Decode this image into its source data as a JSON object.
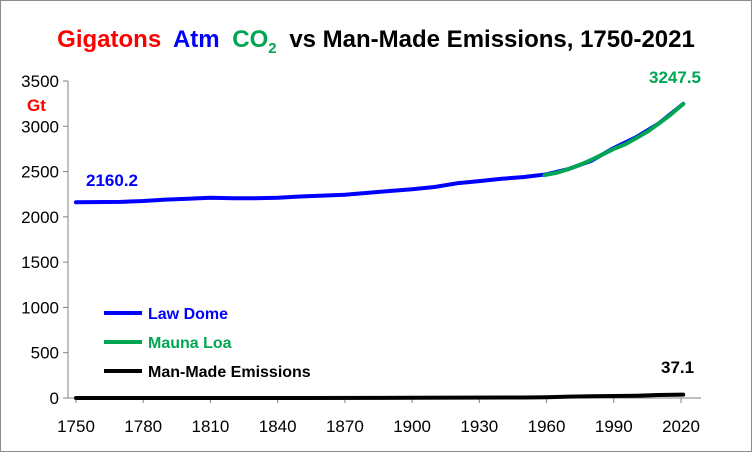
{
  "chart_data": {
    "type": "line",
    "title": {
      "part1": "Gigatons",
      "part2": "Atm",
      "part3": "CO",
      "part3_sub": "2",
      "part4": "vs Man-Made Emissions, 1750-2021",
      "colors": [
        "#ff0000",
        "#0000ff",
        "#00a651",
        "#000000"
      ]
    },
    "ylabel": "Gt",
    "xlim": [
      1750,
      2025
    ],
    "ylim": [
      0,
      3500
    ],
    "x_ticks": [
      "1750",
      "1780",
      "1810",
      "1840",
      "1870",
      "1900",
      "1930",
      "1960",
      "1990",
      "2020"
    ],
    "y_ticks": [
      "0",
      "500",
      "1000",
      "1500",
      "2000",
      "2500",
      "3000",
      "3500"
    ],
    "grid": false,
    "legend_position": "bottom-left",
    "annotations": [
      {
        "text": "2160.2",
        "color": "#0000ff"
      },
      {
        "text": "3247.5",
        "color": "#00a651"
      },
      {
        "text": "37.1",
        "color": "#000000"
      }
    ],
    "series": [
      {
        "name": "Law Dome",
        "color": "#0000ff",
        "x": [
          1750,
          1770,
          1780,
          1790,
          1800,
          1810,
          1820,
          1830,
          1840,
          1850,
          1860,
          1870,
          1880,
          1890,
          1900,
          1910,
          1920,
          1930,
          1940,
          1950,
          1960,
          1970,
          1980,
          1990,
          2000,
          2010,
          2021
        ],
        "y": [
          2160.2,
          2165,
          2175,
          2190,
          2200,
          2210,
          2205,
          2205,
          2210,
          2225,
          2235,
          2245,
          2265,
          2285,
          2305,
          2330,
          2370,
          2395,
          2420,
          2440,
          2470,
          2530,
          2620,
          2760,
          2880,
          3030,
          3247.5
        ]
      },
      {
        "name": "Mauna Loa",
        "color": "#00a651",
        "x": [
          1959,
          1965,
          1970,
          1975,
          1980,
          1985,
          1990,
          1995,
          2000,
          2005,
          2010,
          2015,
          2021
        ],
        "y": [
          2460,
          2490,
          2530,
          2575,
          2630,
          2690,
          2750,
          2800,
          2870,
          2940,
          3030,
          3120,
          3247.5
        ]
      },
      {
        "name": "Man-Made Emissions",
        "color": "#000000",
        "x": [
          1750,
          1800,
          1850,
          1900,
          1950,
          1960,
          1970,
          1980,
          1990,
          2000,
          2010,
          2021
        ],
        "y": [
          0,
          0,
          0.2,
          2,
          6,
          9,
          15,
          19,
          22,
          25,
          33,
          37.1
        ]
      }
    ]
  }
}
